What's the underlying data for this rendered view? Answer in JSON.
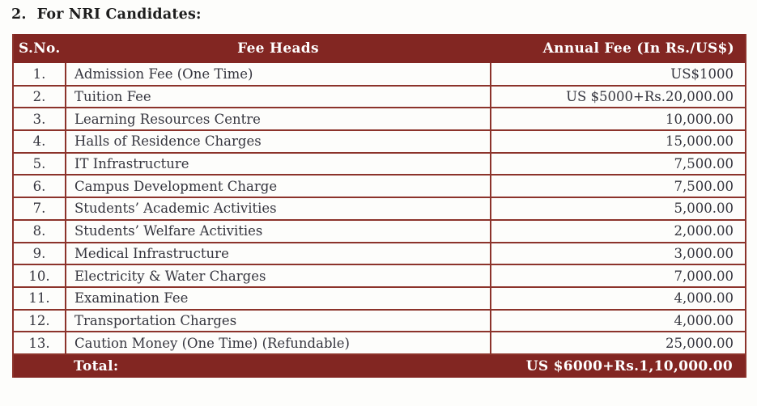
{
  "title": {
    "number": "2.",
    "text": "For NRI Candidates:"
  },
  "table": {
    "columns": [
      "S.No.",
      "Fee Heads",
      "Annual Fee (In Rs./US$)"
    ],
    "rows": [
      {
        "sno": "1.",
        "fee_head": "Admission Fee (One Time)",
        "annual_fee": "US$1000"
      },
      {
        "sno": "2.",
        "fee_head": "Tuition Fee",
        "annual_fee": "US $5000+Rs.20,000.00"
      },
      {
        "sno": "3.",
        "fee_head": "Learning Resources Centre",
        "annual_fee": "10,000.00"
      },
      {
        "sno": "4.",
        "fee_head": "Halls of Residence Charges",
        "annual_fee": "15,000.00"
      },
      {
        "sno": "5.",
        "fee_head": "IT Infrastructure",
        "annual_fee": "7,500.00"
      },
      {
        "sno": "6.",
        "fee_head": "Campus Development Charge",
        "annual_fee": "7,500.00"
      },
      {
        "sno": "7.",
        "fee_head": "Students’ Academic Activities",
        "annual_fee": "5,000.00"
      },
      {
        "sno": "8.",
        "fee_head": "Students’ Welfare Activities",
        "annual_fee": "2,000.00"
      },
      {
        "sno": "9.",
        "fee_head": "Medical Infrastructure",
        "annual_fee": "3,000.00"
      },
      {
        "sno": "10.",
        "fee_head": "Electricity & Water Charges",
        "annual_fee": "7,000.00"
      },
      {
        "sno": "11.",
        "fee_head": "Examination Fee",
        "annual_fee": "4,000.00"
      },
      {
        "sno": "12.",
        "fee_head": "Transportation Charges",
        "annual_fee": "4,000.00"
      },
      {
        "sno": "13.",
        "fee_head": "Caution Money (One Time) (Refundable)",
        "annual_fee": "25,000.00"
      }
    ],
    "total": {
      "label": "Total:",
      "value": "US $6000+Rs.1,10,000.00"
    }
  },
  "colors": {
    "header_background": "#822622",
    "grid_line": "#8c332b",
    "body_text": "#35353e",
    "header_text": "#ffffff",
    "title_text": "#1d1d1d"
  }
}
